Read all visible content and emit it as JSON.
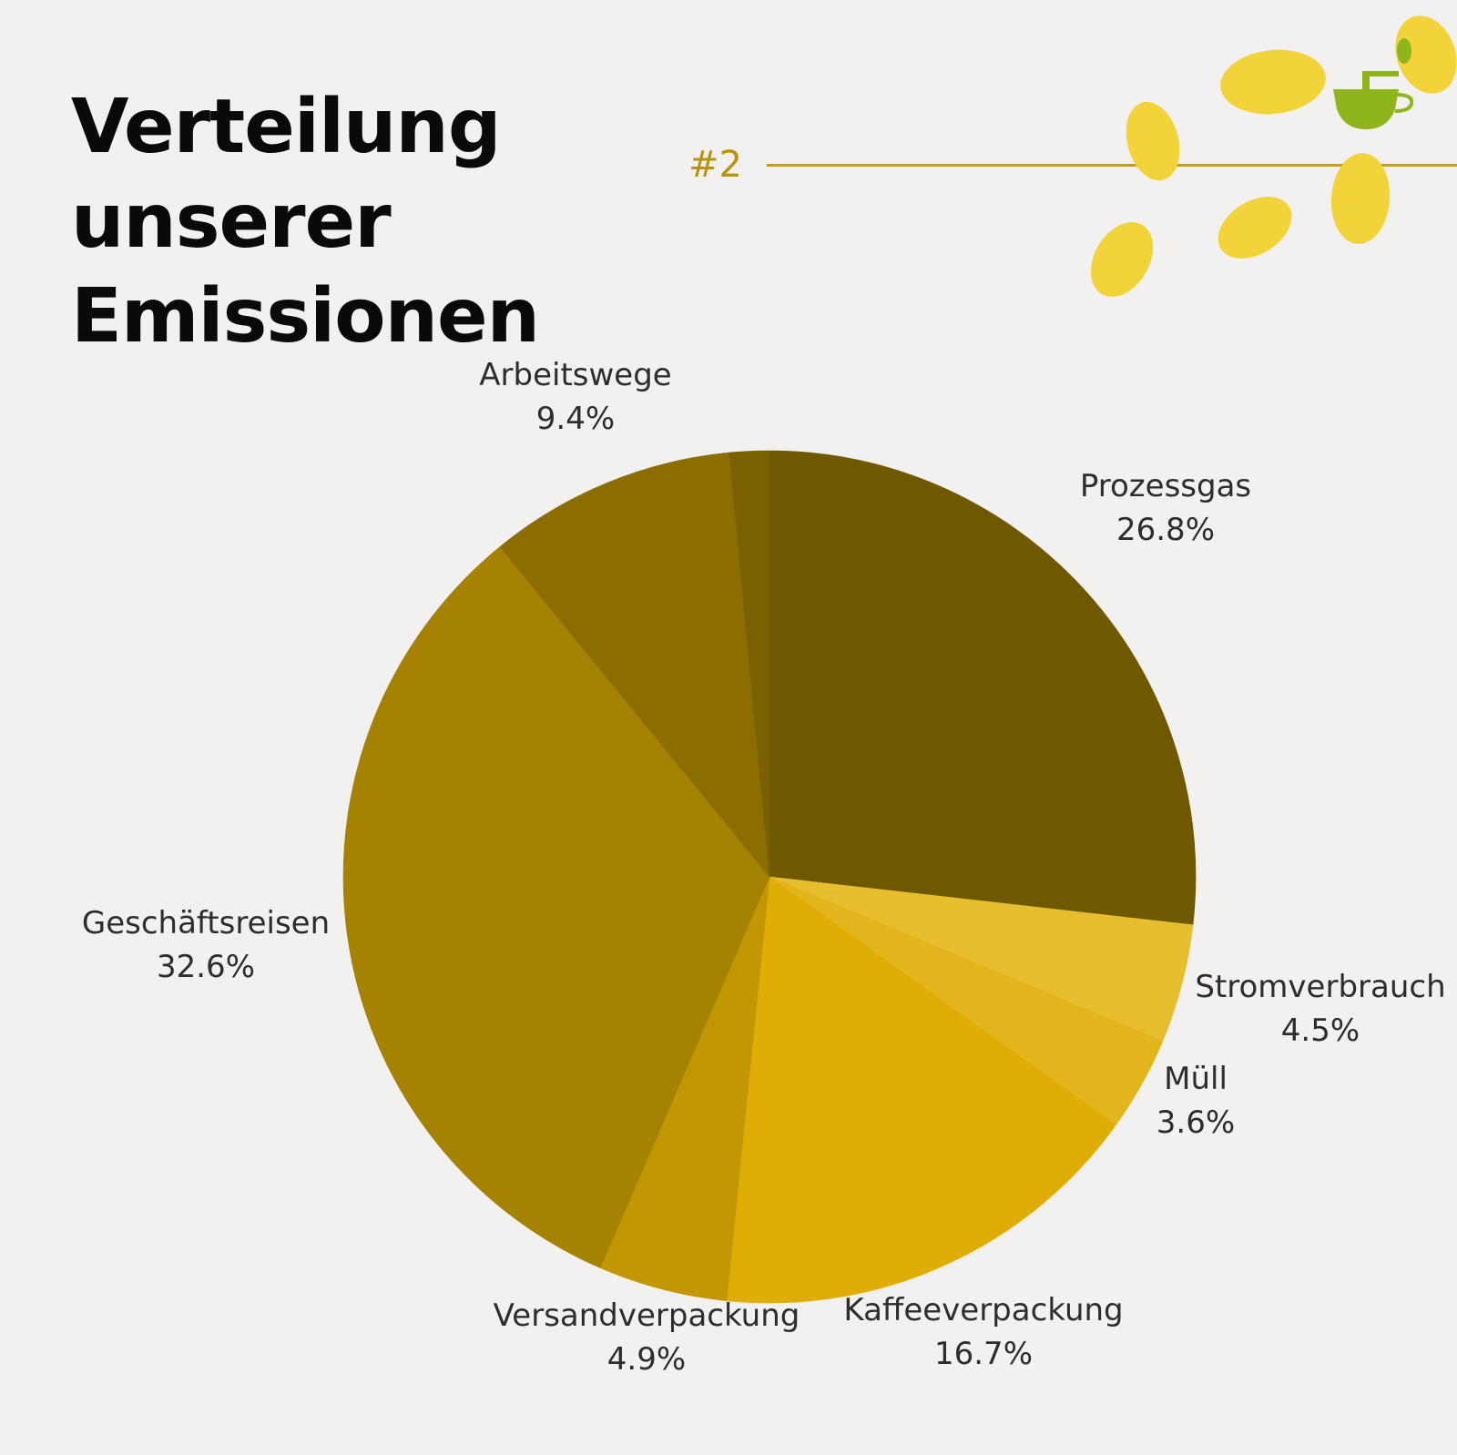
{
  "header": {
    "title_lines": [
      "Verteilung",
      "unserer",
      "Emissionen"
    ],
    "badge": "#2"
  },
  "colors": {
    "background": "#f2f1ef",
    "accent_line": "#c29d12",
    "badge_text": "#b8940c",
    "bean": "#f2d43a",
    "cup": "#8fb41c"
  },
  "decoration": {
    "icons": [
      "coffee-bean-icon",
      "coffee-grinder-cup-icon"
    ]
  },
  "chart_data": {
    "type": "pie",
    "slices": [
      {
        "label": "Prozessgas",
        "value_label": "26.8%",
        "value": 26.8,
        "color": "#6f5800"
      },
      {
        "label": "Stromverbrauch",
        "value_label": "4.5%",
        "value": 4.5,
        "color": "#e6be30"
      },
      {
        "label": "Müll",
        "value_label": "3.6%",
        "value": 3.6,
        "color": "#e2b51c"
      },
      {
        "label": "Kaffeeverpackung",
        "value_label": "16.7%",
        "value": 16.7,
        "color": "#e0ad06"
      },
      {
        "label": "Versandverpackung",
        "value_label": "4.9%",
        "value": 4.9,
        "color": "#c39704"
      },
      {
        "label": "Geschäftsreisen",
        "value_label": "32.6%",
        "value": 32.6,
        "color": "#a68202"
      },
      {
        "label": "Arbeitswege",
        "value_label": "9.4%",
        "value": 9.4,
        "color": "#8c6e00"
      },
      {
        "label": "",
        "value_label": "",
        "value": 1.5,
        "color": "#7a6000"
      }
    ],
    "start_angle_deg": 0,
    "direction": "clockwise",
    "legend": "none (labels placed next to slices)"
  }
}
